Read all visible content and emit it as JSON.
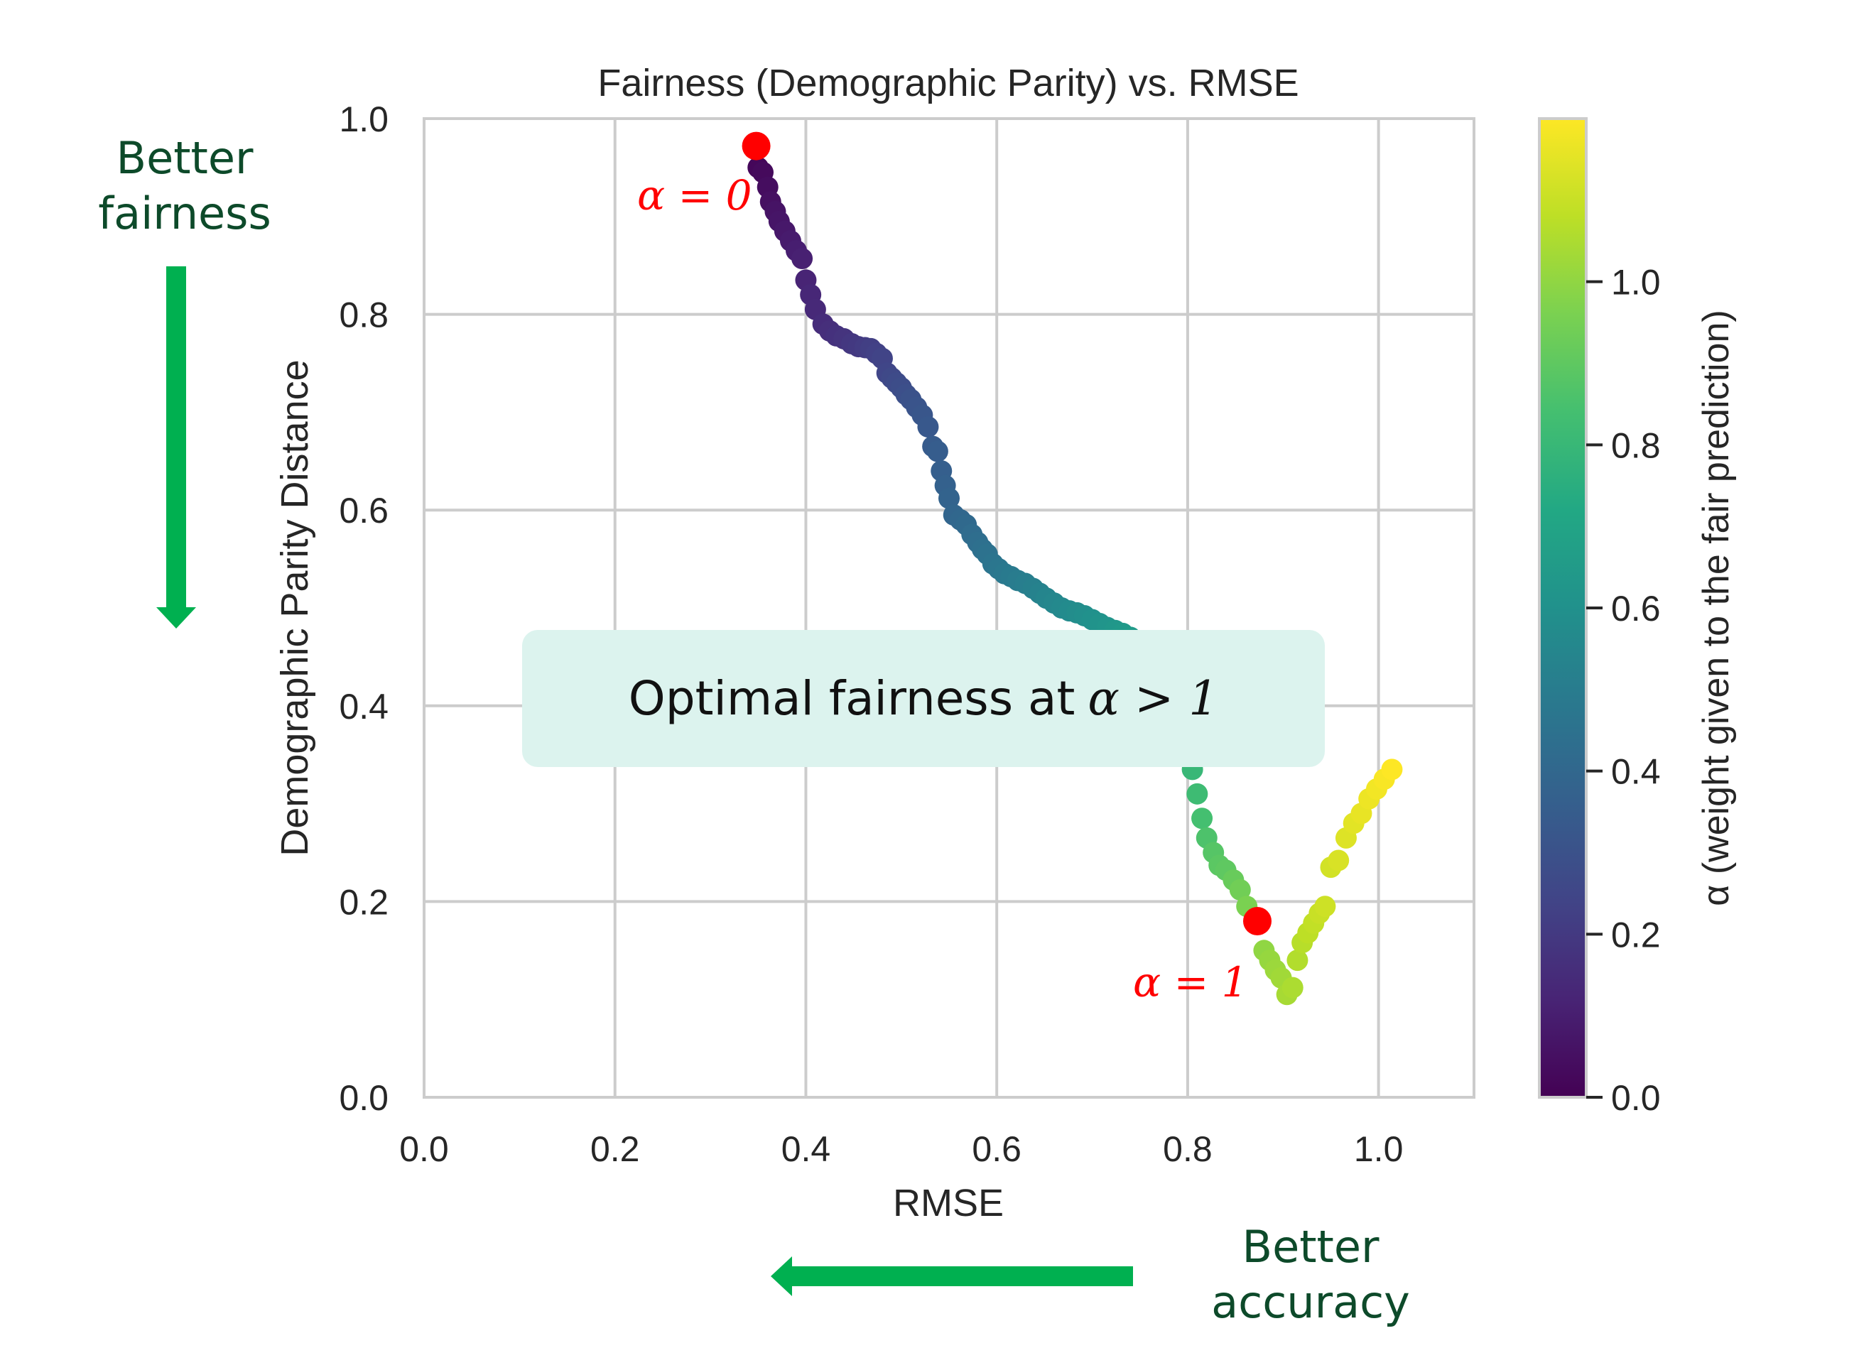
{
  "chart_data": {
    "type": "scatter",
    "title": "Fairness (Demographic Parity) vs. RMSE",
    "xlabel": "RMSE",
    "ylabel": "Demographic Parity Distance",
    "xlim": [
      0.0,
      1.1
    ],
    "ylim": [
      0.0,
      1.0
    ],
    "xticks": [
      "0.0",
      "0.2",
      "0.4",
      "0.6",
      "0.8",
      "1.0"
    ],
    "yticks": [
      "0.0",
      "0.2",
      "0.4",
      "0.6",
      "0.8",
      "1.0"
    ],
    "grid": true,
    "colormap": "viridis",
    "colorbar": {
      "label": "α (weight given to the fair prediction)",
      "range": [
        0.0,
        1.2
      ],
      "ticks": [
        "0.0",
        "0.2",
        "0.4",
        "0.6",
        "0.8",
        "1.0"
      ]
    },
    "series": [
      {
        "points": [
          [
            0.35,
            0.95,
            0.02
          ],
          [
            0.355,
            0.945,
            0.03
          ],
          [
            0.36,
            0.93,
            0.04
          ],
          [
            0.363,
            0.915,
            0.05
          ],
          [
            0.368,
            0.905,
            0.06
          ],
          [
            0.372,
            0.895,
            0.07
          ],
          [
            0.378,
            0.885,
            0.08
          ],
          [
            0.384,
            0.875,
            0.09
          ],
          [
            0.39,
            0.865,
            0.1
          ],
          [
            0.396,
            0.857,
            0.11
          ],
          [
            0.4,
            0.835,
            0.12
          ],
          [
            0.405,
            0.82,
            0.13
          ],
          [
            0.41,
            0.805,
            0.14
          ],
          [
            0.418,
            0.79,
            0.15
          ],
          [
            0.425,
            0.783,
            0.16
          ],
          [
            0.432,
            0.778,
            0.17
          ],
          [
            0.44,
            0.775,
            0.18
          ],
          [
            0.448,
            0.77,
            0.19
          ],
          [
            0.455,
            0.767,
            0.2
          ],
          [
            0.462,
            0.766,
            0.21
          ],
          [
            0.468,
            0.765,
            0.22
          ],
          [
            0.474,
            0.76,
            0.23
          ],
          [
            0.48,
            0.755,
            0.24
          ],
          [
            0.485,
            0.74,
            0.25
          ],
          [
            0.49,
            0.735,
            0.26
          ],
          [
            0.495,
            0.73,
            0.27
          ],
          [
            0.5,
            0.725,
            0.28
          ],
          [
            0.505,
            0.718,
            0.29
          ],
          [
            0.51,
            0.713,
            0.3
          ],
          [
            0.516,
            0.705,
            0.31
          ],
          [
            0.522,
            0.697,
            0.32
          ],
          [
            0.528,
            0.685,
            0.33
          ],
          [
            0.533,
            0.665,
            0.34
          ],
          [
            0.538,
            0.66,
            0.35
          ],
          [
            0.542,
            0.64,
            0.36
          ],
          [
            0.546,
            0.625,
            0.37
          ],
          [
            0.55,
            0.612,
            0.38
          ],
          [
            0.555,
            0.595,
            0.39
          ],
          [
            0.562,
            0.59,
            0.4
          ],
          [
            0.568,
            0.585,
            0.41
          ],
          [
            0.574,
            0.575,
            0.42
          ],
          [
            0.58,
            0.567,
            0.43
          ],
          [
            0.585,
            0.56,
            0.44
          ],
          [
            0.59,
            0.555,
            0.45
          ],
          [
            0.596,
            0.545,
            0.46
          ],
          [
            0.602,
            0.54,
            0.47
          ],
          [
            0.608,
            0.535,
            0.48
          ],
          [
            0.615,
            0.532,
            0.49
          ],
          [
            0.622,
            0.528,
            0.5
          ],
          [
            0.63,
            0.525,
            0.51
          ],
          [
            0.638,
            0.52,
            0.52
          ],
          [
            0.645,
            0.515,
            0.53
          ],
          [
            0.652,
            0.51,
            0.54
          ],
          [
            0.66,
            0.505,
            0.55
          ],
          [
            0.668,
            0.5,
            0.56
          ],
          [
            0.676,
            0.497,
            0.57
          ],
          [
            0.684,
            0.495,
            0.58
          ],
          [
            0.692,
            0.492,
            0.59
          ],
          [
            0.7,
            0.488,
            0.6
          ],
          [
            0.708,
            0.484,
            0.61
          ],
          [
            0.716,
            0.48,
            0.62
          ],
          [
            0.724,
            0.477,
            0.63
          ],
          [
            0.732,
            0.474,
            0.64
          ],
          [
            0.74,
            0.47,
            0.65
          ],
          [
            0.748,
            0.466,
            0.66
          ],
          [
            0.756,
            0.462,
            0.67
          ],
          [
            0.764,
            0.458,
            0.68
          ],
          [
            0.805,
            0.335,
            0.8
          ],
          [
            0.81,
            0.31,
            0.82
          ],
          [
            0.815,
            0.285,
            0.84
          ],
          [
            0.82,
            0.265,
            0.86
          ],
          [
            0.827,
            0.25,
            0.88
          ],
          [
            0.833,
            0.237,
            0.89
          ],
          [
            0.84,
            0.232,
            0.9
          ],
          [
            0.848,
            0.222,
            0.92
          ],
          [
            0.855,
            0.212,
            0.94
          ],
          [
            0.862,
            0.195,
            0.96
          ],
          [
            0.87,
            0.18,
            0.98
          ],
          [
            0.88,
            0.15,
            1.0
          ],
          [
            0.886,
            0.14,
            1.01
          ],
          [
            0.892,
            0.13,
            1.02
          ],
          [
            0.898,
            0.122,
            1.03
          ],
          [
            0.904,
            0.105,
            1.04
          ],
          [
            0.91,
            0.112,
            1.05
          ],
          [
            0.915,
            0.14,
            1.06
          ],
          [
            0.92,
            0.158,
            1.07
          ],
          [
            0.926,
            0.168,
            1.08
          ],
          [
            0.932,
            0.178,
            1.09
          ],
          [
            0.938,
            0.188,
            1.1
          ],
          [
            0.944,
            0.195,
            1.11
          ],
          [
            0.95,
            0.235,
            1.12
          ],
          [
            0.958,
            0.242,
            1.13
          ],
          [
            0.966,
            0.265,
            1.14
          ],
          [
            0.974,
            0.28,
            1.15
          ],
          [
            0.982,
            0.29,
            1.16
          ],
          [
            0.99,
            0.305,
            1.17
          ],
          [
            0.998,
            0.315,
            1.18
          ],
          [
            1.006,
            0.325,
            1.19
          ],
          [
            1.014,
            0.335,
            1.2
          ]
        ]
      }
    ],
    "highlights": [
      {
        "x": 0.348,
        "y": 0.972,
        "color": "#ff0000",
        "label": "α = 0"
      },
      {
        "x": 0.873,
        "y": 0.18,
        "color": "#ff0000",
        "label": "α = 1"
      }
    ],
    "annotations": {
      "better_fairness": [
        "Better",
        "fairness"
      ],
      "better_accuracy": [
        "Better",
        "accuracy"
      ],
      "callout_text": "Optimal fairness at",
      "callout_math": "α > 1"
    },
    "arrow_color": "#00b050",
    "callout_bg": "#dcf3ee"
  }
}
